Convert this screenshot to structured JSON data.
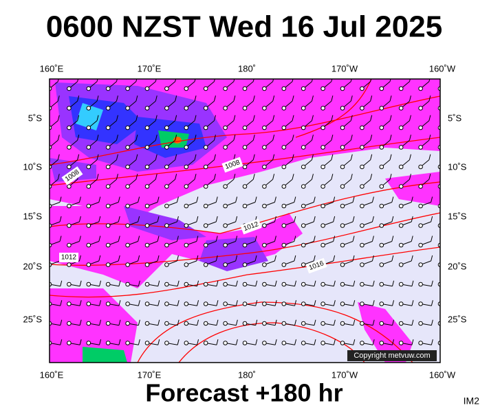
{
  "title": "0600 NZST Wed 16 Jul 2025",
  "footer": "Forecast +180 hr",
  "panel_id": "IM2",
  "copyright": "Copyright metvuw.com",
  "lon_labels": [
    "160˚E",
    "170˚E",
    "180˚",
    "170˚W",
    "160˚W"
  ],
  "lat_labels": [
    "5˚S",
    "10˚S",
    "15˚S",
    "20˚S",
    "25˚S"
  ],
  "isobar_labels": [
    "1008",
    "1008",
    "1012",
    "1012",
    "1016"
  ]
}
